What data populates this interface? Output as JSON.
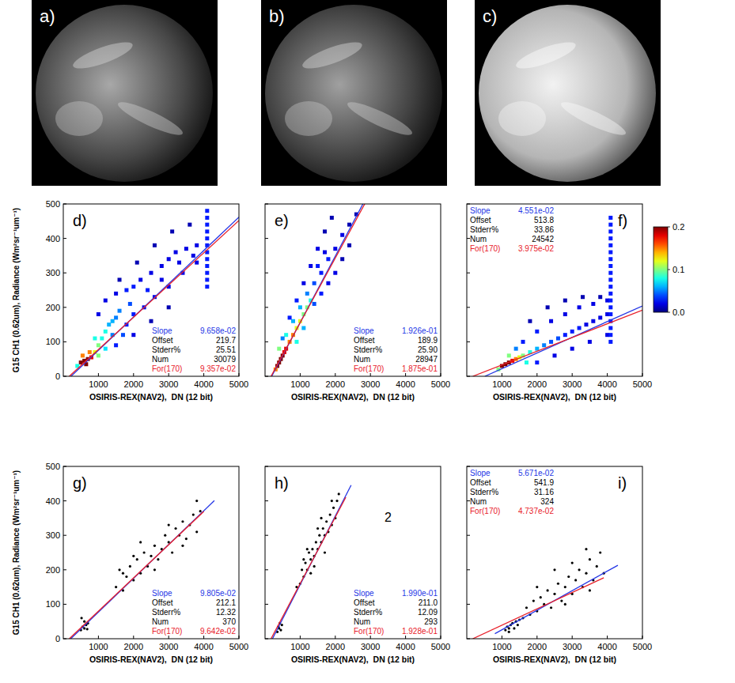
{
  "images": [
    {
      "label": "a)"
    },
    {
      "label": "b)"
    },
    {
      "label": "c)"
    }
  ],
  "colorbar": {
    "lim": [
      0,
      0.2
    ],
    "ticks": [
      {
        "value": 0,
        "label": "0.0"
      },
      0.1,
      0.2
    ]
  },
  "chart_data": [
    {
      "type": "scatter",
      "panel": "d)",
      "x_label": "OSIRIS-REX(NAV2),  DN (12 bit)",
      "y_label": "G15 CH1 (0.62um), Radiance (Wm²sr⁻¹um⁻¹)",
      "xlim": [
        0,
        5000
      ],
      "ylim": [
        0,
        500
      ],
      "xticks": [
        1000,
        2000,
        3000,
        4000,
        5000
      ],
      "yticks": [
        0,
        100,
        200,
        300,
        400,
        500
      ],
      "tick_labels": true,
      "legend": "lower right",
      "x": [
        500,
        600,
        700,
        800,
        650,
        750,
        550,
        900,
        1000,
        1100,
        1200,
        900,
        1300,
        1400,
        1500,
        1600,
        1000,
        1200,
        1400,
        1000,
        1200,
        1500,
        1800,
        2000,
        2200,
        2500,
        2800,
        3000,
        3200,
        3500,
        3800,
        1800,
        2000,
        2300,
        2600,
        3000,
        3400,
        3800,
        2000,
        2500,
        3000,
        1500,
        1700,
        400,
        1900,
        2400,
        2800,
        3300,
        3700,
        1600,
        2100,
        2600,
        3100,
        3600,
        4095,
        4095,
        4095,
        4095,
        4095,
        4095,
        4095,
        4095,
        4095,
        4095,
        4095,
        4095
      ],
      "values": [
        40,
        45,
        50,
        55,
        35,
        70,
        60,
        70,
        90,
        110,
        130,
        110,
        150,
        160,
        170,
        190,
        60,
        80,
        120,
        180,
        220,
        240,
        250,
        260,
        280,
        300,
        320,
        340,
        360,
        370,
        380,
        150,
        180,
        200,
        230,
        260,
        300,
        330,
        120,
        160,
        200,
        90,
        120,
        30,
        210,
        250,
        280,
        330,
        350,
        280,
        330,
        380,
        420,
        440,
        260,
        280,
        300,
        320,
        340,
        360,
        380,
        400,
        420,
        440,
        460,
        480
      ],
      "density": [
        0.2,
        0.2,
        0.2,
        0.18,
        0.2,
        0.15,
        0.15,
        0.12,
        0.1,
        0.08,
        0.08,
        0.08,
        0.06,
        0.06,
        0.05,
        0.05,
        0.1,
        0.07,
        0.05,
        0.02,
        0.02,
        0.02,
        0.03,
        0.03,
        0.02,
        0.02,
        0.02,
        0.02,
        0.02,
        0.02,
        0.02,
        0.03,
        0.03,
        0.02,
        0.02,
        0.02,
        0.02,
        0.02,
        0.02,
        0.01,
        0.01,
        0.03,
        0.04,
        0.08,
        0.04,
        0.03,
        0.02,
        0.02,
        0.02,
        0.01,
        0.01,
        0.01,
        0.01,
        0.01,
        0.03,
        0.03,
        0.03,
        0.03,
        0.03,
        0.03,
        0.03,
        0.03,
        0.03,
        0.03,
        0.03,
        0.03
      ],
      "stats": {
        "slope": {
          "name": "Slope",
          "value": 0.09658,
          "label": "9.658e-02",
          "color": "#2436e6",
          "x_extent": [
            220,
            5000
          ]
        },
        "offset": {
          "name": "Offset",
          "value": 219.7
        },
        "stderr": {
          "name": "Stderr%",
          "value": 25.51
        },
        "num": {
          "name": "Num",
          "value": 30079
        },
        "fixed": {
          "name": "For(170)",
          "offset": 170,
          "value": 0.09357,
          "label": "9.357e-02",
          "color": "#e8202a",
          "x_extent": [
            170,
            5000
          ]
        }
      }
    },
    {
      "type": "scatter",
      "panel": "e)",
      "x_label": "OSIRIS-REX(NAV2),  DN (12 bit)",
      "xlim": [
        0,
        5000
      ],
      "ylim": [
        0,
        500
      ],
      "xticks": [
        1000,
        2000,
        3000,
        4000,
        5000
      ],
      "yticks": [
        0,
        100,
        200,
        300,
        400,
        500
      ],
      "tick_labels": "x",
      "legend": "lower right",
      "x": [
        350,
        400,
        450,
        500,
        550,
        600,
        700,
        800,
        900,
        1000,
        1100,
        1200,
        1300,
        400,
        600,
        800,
        1000,
        1200,
        1400,
        1600,
        1800,
        2000,
        2200,
        2400,
        2600,
        700,
        900,
        1100,
        1300,
        1500,
        1700,
        1900,
        1400,
        1600,
        1800,
        2000,
        2200,
        2400,
        500,
        300,
        1500,
        1700,
        900,
        1100
      ],
      "values": [
        30,
        40,
        50,
        60,
        70,
        80,
        100,
        120,
        140,
        160,
        180,
        200,
        220,
        80,
        120,
        160,
        200,
        240,
        270,
        300,
        340,
        370,
        410,
        440,
        470,
        170,
        220,
        270,
        320,
        370,
        420,
        460,
        210,
        240,
        270,
        300,
        340,
        380,
        110,
        20,
        320,
        360,
        100,
        140
      ],
      "density": [
        0.2,
        0.2,
        0.2,
        0.2,
        0.18,
        0.18,
        0.15,
        0.15,
        0.12,
        0.12,
        0.1,
        0.1,
        0.08,
        0.1,
        0.08,
        0.06,
        0.06,
        0.05,
        0.04,
        0.03,
        0.03,
        0.02,
        0.02,
        0.01,
        0.01,
        0.03,
        0.03,
        0.02,
        0.02,
        0.02,
        0.01,
        0.01,
        0.04,
        0.03,
        0.02,
        0.02,
        0.01,
        0.01,
        0.05,
        0.15,
        0.03,
        0.02,
        0.08,
        0.06
      ],
      "stats": {
        "slope": {
          "name": "Slope",
          "value": 0.1926,
          "label": "1.926e-01",
          "color": "#2436e6",
          "x_extent": [
            190,
            3000
          ]
        },
        "offset": {
          "name": "Offset",
          "value": 189.9
        },
        "stderr": {
          "name": "Stderr%",
          "value": 25.9,
          "label": "25.90"
        },
        "num": {
          "name": "Num",
          "value": 28947
        },
        "fixed": {
          "name": "For(170)",
          "offset": 170,
          "value": 0.1875,
          "label": "1.875e-01",
          "color": "#e8202a",
          "x_extent": [
            170,
            3000
          ]
        }
      }
    },
    {
      "type": "scatter",
      "panel": "f)",
      "x_label": "OSIRIS-REX(NAV2),  DN (12 bit)",
      "xlim": [
        0,
        5000
      ],
      "ylim": [
        0,
        500
      ],
      "xticks": [
        1000,
        2000,
        3000,
        4000,
        5000
      ],
      "yticks": [
        0,
        100,
        200,
        300,
        400,
        500
      ],
      "tick_labels": "x",
      "legend": "upper left",
      "x": [
        1000,
        1100,
        1200,
        1300,
        1400,
        1500,
        1200,
        1600,
        1800,
        2000,
        2200,
        2400,
        2600,
        2800,
        3000,
        3200,
        3400,
        3600,
        3800,
        4000,
        1600,
        2000,
        2400,
        2800,
        3200,
        3600,
        4000,
        2000,
        2500,
        3000,
        3500,
        4000,
        900,
        1800,
        2300,
        2800,
        3300,
        3800,
        1400,
        1700,
        4095,
        4095,
        4095,
        4095,
        4095,
        4095,
        4095,
        4095,
        4095,
        4095,
        4095,
        4095,
        4095,
        4095,
        4095,
        4095,
        4095,
        4095,
        4095
      ],
      "values": [
        30,
        35,
        40,
        45,
        50,
        55,
        60,
        60,
        70,
        80,
        90,
        100,
        110,
        120,
        130,
        140,
        150,
        160,
        170,
        180,
        100,
        130,
        160,
        180,
        200,
        210,
        220,
        40,
        60,
        80,
        100,
        120,
        20,
        160,
        200,
        220,
        230,
        230,
        80,
        40,
        100,
        120,
        140,
        160,
        180,
        200,
        220,
        240,
        260,
        280,
        300,
        320,
        340,
        360,
        380,
        400,
        420,
        440,
        460
      ],
      "density": [
        0.2,
        0.2,
        0.2,
        0.18,
        0.15,
        0.12,
        0.1,
        0.1,
        0.08,
        0.06,
        0.05,
        0.04,
        0.04,
        0.03,
        0.03,
        0.03,
        0.02,
        0.02,
        0.02,
        0.02,
        0.03,
        0.03,
        0.02,
        0.02,
        0.02,
        0.02,
        0.02,
        0.03,
        0.02,
        0.02,
        0.02,
        0.02,
        0.1,
        0.01,
        0.01,
        0.01,
        0.01,
        0.01,
        0.05,
        0.08,
        0.03,
        0.03,
        0.03,
        0.03,
        0.03,
        0.03,
        0.03,
        0.03,
        0.03,
        0.03,
        0.03,
        0.03,
        0.03,
        0.03,
        0.03,
        0.03,
        0.03,
        0.03,
        0.03
      ],
      "stats": {
        "slope": {
          "name": "Slope",
          "value": 0.04551,
          "label": "4.551e-02",
          "color": "#2436e6",
          "x_extent": [
            514,
            5000
          ]
        },
        "offset": {
          "name": "Offset",
          "value": 513.8
        },
        "stderr": {
          "name": "Stderr%",
          "value": 33.86
        },
        "num": {
          "name": "Num",
          "value": 24542
        },
        "fixed": {
          "name": "For(170)",
          "offset": 170,
          "value": 0.03975,
          "label": "3.975e-02",
          "color": "#e8202a",
          "x_extent": [
            170,
            5000
          ]
        }
      }
    },
    {
      "type": "scatter",
      "panel": "g)",
      "x_label": "OSIRIS-REX(NAV2),  DN (12 bit)",
      "y_label": "G15 CH1 (0.62um), Radiance (Wm²sr⁻¹um⁻¹)",
      "xlim": [
        0,
        5000
      ],
      "ylim": [
        0,
        500
      ],
      "xticks": [
        1000,
        2000,
        3000,
        4000,
        5000
      ],
      "yticks": [
        0,
        100,
        200,
        300,
        400,
        500
      ],
      "tick_labels": true,
      "legend": "lower right",
      "color": "#000000",
      "x": [
        500,
        550,
        600,
        650,
        700,
        600,
        520,
        680,
        1500,
        1600,
        1700,
        1800,
        1900,
        2000,
        2100,
        2200,
        2300,
        2400,
        2500,
        2600,
        2700,
        2800,
        2900,
        3000,
        3100,
        3200,
        3300,
        3400,
        3500,
        3600,
        3700,
        3800,
        3900,
        2200,
        2600,
        3000,
        3400,
        3800,
        2000,
        1700
      ],
      "values": [
        25,
        35,
        30,
        40,
        45,
        50,
        60,
        28,
        150,
        200,
        140,
        180,
        210,
        170,
        230,
        190,
        250,
        210,
        240,
        270,
        230,
        260,
        300,
        280,
        250,
        320,
        300,
        340,
        290,
        330,
        360,
        310,
        370,
        280,
        200,
        330,
        270,
        400,
        240,
        190
      ],
      "stats": {
        "slope": {
          "name": "Slope",
          "value": 0.09805,
          "label": "9.805e-02",
          "color": "#2436e6",
          "x_extent": [
            212,
            4300
          ]
        },
        "offset": {
          "name": "Offset",
          "value": 212.1
        },
        "stderr": {
          "name": "Stderr%",
          "value": 12.32
        },
        "num": {
          "name": "Num",
          "value": 370
        },
        "fixed": {
          "name": "For(170)",
          "offset": 170,
          "value": 0.09642,
          "label": "9.642e-02",
          "color": "#e8202a",
          "x_extent": [
            170,
            4000
          ]
        }
      }
    },
    {
      "type": "scatter",
      "panel": "h)",
      "x_label": "OSIRIS-REX(NAV2),  DN (12 bit)",
      "xlim": [
        0,
        5000
      ],
      "ylim": [
        0,
        500
      ],
      "xticks": [
        1000,
        2000,
        3000,
        4000,
        5000
      ],
      "yticks": [
        0,
        100,
        200,
        300,
        400,
        500
      ],
      "tick_labels": "x",
      "legend": "lower right",
      "color": "#000000",
      "x": [
        350,
        400,
        450,
        420,
        380,
        480,
        900,
        1000,
        1050,
        1100,
        1150,
        1200,
        1250,
        1300,
        1350,
        1400,
        1450,
        1500,
        1550,
        1600,
        1650,
        1700,
        1750,
        1800,
        1850,
        1900,
        1950,
        2000,
        2050,
        2100,
        1300,
        1500,
        1700,
        1900,
        1200,
        1600,
        1100,
        1400
      ],
      "values": [
        20,
        30,
        25,
        45,
        35,
        40,
        150,
        160,
        200,
        180,
        220,
        200,
        250,
        230,
        260,
        240,
        280,
        260,
        300,
        280,
        320,
        300,
        340,
        310,
        360,
        330,
        380,
        350,
        400,
        420,
        190,
        320,
        250,
        400,
        260,
        350,
        230,
        210
      ],
      "annotations": [
        {
          "text": "2",
          "x": 3500,
          "y": 340
        }
      ],
      "stats": {
        "slope": {
          "name": "Slope",
          "value": 0.199,
          "label": "1.990e-01",
          "color": "#2436e6",
          "x_extent": [
            211,
            2450
          ]
        },
        "offset": {
          "name": "Offset",
          "value": 211,
          "label": "211.0"
        },
        "stderr": {
          "name": "Stderr%",
          "value": 12.09
        },
        "num": {
          "name": "Num",
          "value": 293
        },
        "fixed": {
          "name": "For(170)",
          "offset": 170,
          "value": 0.1928,
          "label": "1.928e-01",
          "color": "#e8202a",
          "x_extent": [
            170,
            2300
          ]
        }
      }
    },
    {
      "type": "scatter",
      "panel": "i)",
      "x_label": "OSIRIS-REX(NAV2),  DN (12 bit)",
      "xlim": [
        0,
        5000
      ],
      "ylim": [
        0,
        500
      ],
      "xticks": [
        1000,
        2000,
        3000,
        4000,
        5000
      ],
      "yticks": [
        0,
        100,
        200,
        300,
        400,
        500
      ],
      "tick_labels": "x",
      "legend": "upper left",
      "color": "#000000",
      "x": [
        1100,
        1150,
        1200,
        1250,
        1300,
        1350,
        1400,
        1450,
        1200,
        1500,
        1600,
        1700,
        1800,
        1900,
        2000,
        2100,
        2200,
        2300,
        2400,
        2500,
        2600,
        2700,
        2800,
        2900,
        3000,
        3100,
        3200,
        3300,
        3400,
        3500,
        3600,
        3700,
        3800,
        3900,
        2500,
        3000,
        3400,
        2000,
        2800,
        3500
      ],
      "values": [
        25,
        35,
        30,
        40,
        45,
        30,
        50,
        40,
        20,
        55,
        60,
        90,
        70,
        110,
        80,
        120,
        100,
        140,
        90,
        130,
        160,
        110,
        150,
        180,
        130,
        170,
        200,
        150,
        190,
        230,
        170,
        210,
        250,
        190,
        200,
        220,
        260,
        150,
        100,
        140
      ],
      "stats": {
        "slope": {
          "name": "Slope",
          "value": 0.05671,
          "label": "5.671e-02",
          "color": "#2436e6",
          "x_extent": [
            800,
            4300
          ]
        },
        "offset": {
          "name": "Offset",
          "value": 541.9
        },
        "stderr": {
          "name": "Stderr%",
          "value": 31.16
        },
        "num": {
          "name": "Num",
          "value": 324
        },
        "fixed": {
          "name": "For(170)",
          "offset": 170,
          "value": 0.04737,
          "label": "4.737e-02",
          "color": "#e8202a",
          "x_extent": [
            170,
            3900
          ]
        }
      }
    }
  ]
}
